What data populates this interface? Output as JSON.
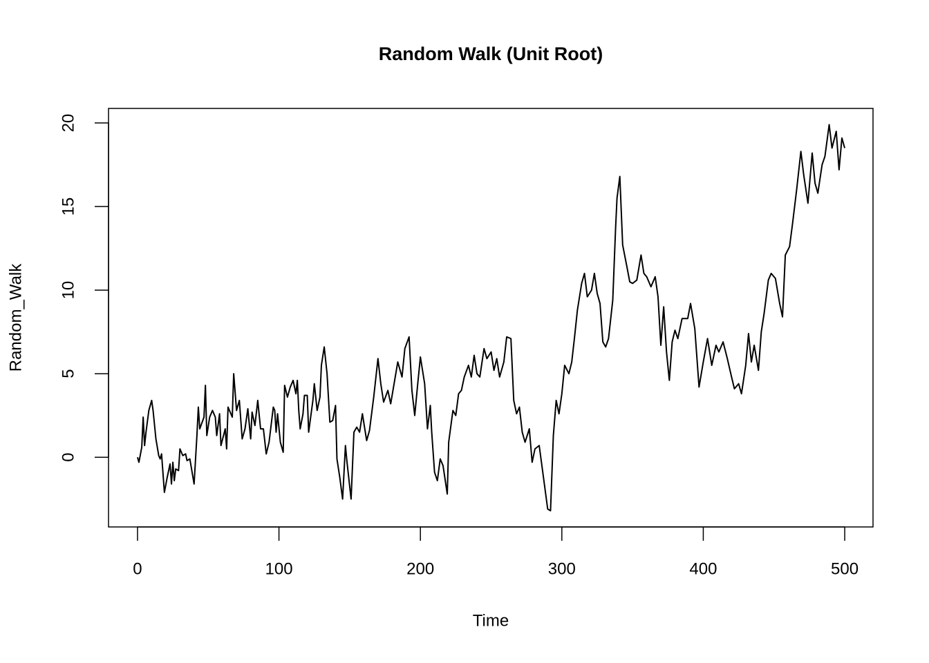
{
  "chart_data": {
    "type": "line",
    "title": "Random Walk (Unit Root)",
    "xlabel": "Time",
    "ylabel": "Random_Walk",
    "color": "#000000",
    "x": [
      0,
      1,
      3,
      4,
      5,
      6,
      8,
      10,
      11,
      13,
      15,
      16,
      17,
      19,
      21,
      23,
      24,
      25,
      26,
      27,
      29,
      30,
      32,
      34,
      35,
      37,
      39,
      40,
      42,
      43,
      44,
      47,
      48,
      49,
      51,
      53,
      55,
      56,
      58,
      59,
      62,
      63,
      64,
      67,
      68,
      70,
      72,
      74,
      76,
      78,
      80,
      81,
      83,
      85,
      87,
      89,
      91,
      93,
      96,
      97,
      98,
      99,
      101,
      103,
      104,
      106,
      108,
      110,
      112,
      113,
      114,
      115,
      117,
      118,
      120,
      121,
      124,
      125,
      127,
      129,
      130,
      132,
      134,
      136,
      138,
      140,
      141,
      143,
      145,
      147,
      148,
      151,
      153,
      155,
      157,
      159,
      162,
      164,
      167,
      170,
      172,
      174,
      177,
      179,
      182,
      184,
      187,
      189,
      192,
      194,
      196,
      198,
      200,
      203,
      205,
      207,
      208,
      210,
      212,
      214,
      216,
      219,
      220,
      223,
      225,
      227,
      229,
      231,
      234,
      236,
      238,
      240,
      242,
      245,
      247,
      250,
      252,
      254,
      256,
      259,
      261,
      264,
      266,
      268,
      270,
      272,
      274,
      277,
      279,
      281,
      284,
      287,
      290,
      292,
      294,
      296,
      298,
      300,
      302,
      305,
      307,
      309,
      311,
      314,
      316,
      318,
      321,
      323,
      325,
      327,
      329,
      331,
      333,
      336,
      338,
      339,
      341,
      343,
      346,
      348,
      350,
      353,
      356,
      358,
      360,
      363,
      366,
      368,
      370,
      372,
      374,
      376,
      378,
      380,
      382,
      385,
      388,
      389,
      391,
      394,
      397,
      400,
      403,
      406,
      409,
      411,
      414,
      417,
      420,
      422,
      425,
      427,
      430,
      432,
      434,
      436,
      439,
      441,
      443,
      446,
      448,
      451,
      454,
      456,
      458,
      461,
      463,
      466,
      469,
      471,
      474,
      477,
      479,
      481,
      484,
      486,
      489,
      491,
      494,
      496,
      498,
      500
    ],
    "values": [
      0,
      -0.3,
      0.6,
      2.4,
      0.7,
      1.5,
      2.8,
      3.4,
      2.8,
      1.1,
      0.1,
      -0.1,
      0.2,
      -2.1,
      -1.2,
      -0.4,
      -1.6,
      -0.3,
      -1.4,
      -0.7,
      -0.8,
      0.5,
      0.1,
      0.2,
      -0.2,
      -0.1,
      -1.1,
      -1.6,
      1.3,
      3.0,
      1.7,
      2.4,
      4.3,
      1.3,
      2.4,
      2.8,
      2.4,
      1.3,
      2.6,
      0.7,
      1.7,
      0.5,
      3.0,
      2.4,
      5.0,
      2.8,
      3.4,
      1.1,
      1.7,
      2.9,
      1.1,
      2.7,
      1.9,
      3.4,
      1.7,
      1.7,
      0.2,
      0.9,
      3.0,
      2.8,
      1.5,
      2.6,
      0.9,
      0.3,
      4.3,
      3.6,
      4.2,
      4.6,
      3.8,
      4.6,
      2.8,
      1.7,
      2.6,
      3.7,
      3.7,
      1.5,
      3.4,
      4.4,
      2.8,
      3.6,
      5.5,
      6.6,
      5.0,
      2.1,
      2.2,
      3.1,
      -0.1,
      -1.2,
      -2.5,
      0.7,
      -0.2,
      -2.5,
      1.5,
      1.8,
      1.5,
      2.6,
      1.0,
      1.6,
      3.6,
      5.9,
      4.4,
      3.3,
      4.0,
      3.2,
      4.7,
      5.7,
      4.8,
      6.5,
      7.2,
      4.0,
      2.5,
      4.3,
      6.0,
      4.4,
      1.7,
      3.1,
      1.5,
      -0.9,
      -1.4,
      -0.1,
      -0.5,
      -2.2,
      0.9,
      2.8,
      2.5,
      3.8,
      4.0,
      4.8,
      5.5,
      4.8,
      6.1,
      5.0,
      4.8,
      6.5,
      5.9,
      6.3,
      5.2,
      5.9,
      4.8,
      5.7,
      7.2,
      7.1,
      3.4,
      2.6,
      3.0,
      1.5,
      0.9,
      1.7,
      -0.3,
      0.5,
      0.7,
      -1.2,
      -3.1,
      -3.2,
      1.3,
      3.4,
      2.6,
      3.8,
      5.5,
      5.0,
      5.7,
      7.2,
      8.8,
      10.4,
      11.0,
      9.6,
      10.0,
      11.0,
      9.8,
      9.2,
      6.9,
      6.6,
      7.1,
      9.4,
      13.7,
      15.5,
      16.8,
      12.7,
      11.4,
      10.5,
      10.4,
      10.6,
      12.1,
      11.0,
      10.8,
      10.2,
      10.8,
      9.6,
      6.7,
      9.0,
      6.3,
      4.6,
      6.9,
      7.6,
      7.1,
      8.3,
      8.3,
      8.3,
      9.2,
      7.7,
      4.2,
      5.7,
      7.1,
      5.5,
      6.7,
      6.3,
      6.9,
      5.9,
      4.8,
      4.1,
      4.4,
      3.8,
      5.5,
      7.4,
      5.7,
      6.7,
      5.2,
      7.5,
      8.6,
      10.6,
      11.0,
      10.7,
      9.2,
      8.4,
      12.1,
      12.6,
      13.9,
      16.0,
      18.3,
      16.9,
      15.2,
      18.2,
      16.4,
      15.8,
      17.5,
      18.0,
      19.9,
      18.5,
      19.5,
      17.2,
      19.1,
      18.5
    ],
    "xlim": [
      -20.5,
      520
    ],
    "ylim": [
      -4.17,
      20.87
    ],
    "xticks": [
      0,
      100,
      200,
      300,
      400,
      500
    ],
    "yticks": [
      0,
      5,
      10,
      15,
      20
    ]
  }
}
